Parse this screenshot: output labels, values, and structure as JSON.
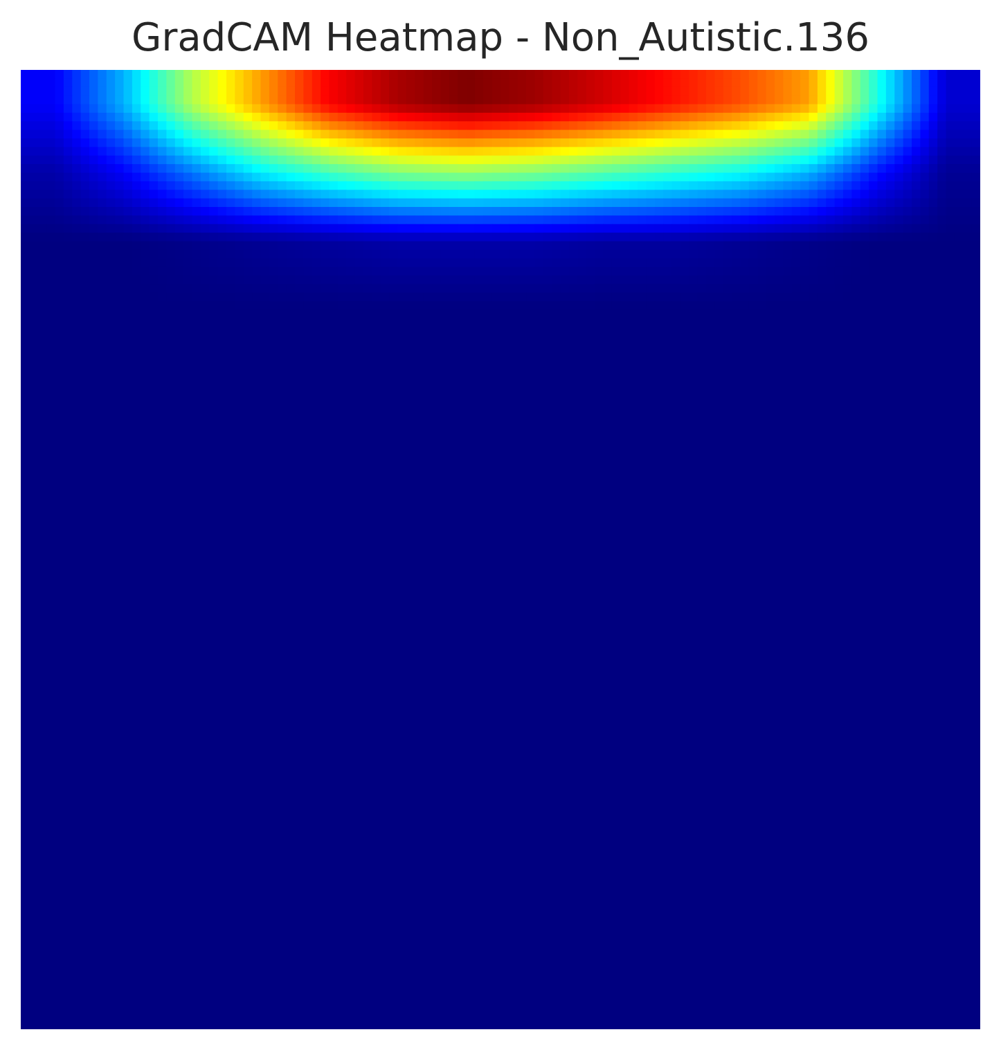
{
  "chart_data": {
    "type": "heatmap",
    "title": "GradCAM Heatmap - Non_Autistic.136",
    "xlabel": "",
    "ylabel": "",
    "colormap": "jet",
    "value_range": [
      0,
      1
    ],
    "axes_visible": false,
    "grid": false,
    "legend": "none",
    "grid_size": [
      14,
      14
    ],
    "values": [
      [
        0.12,
        0.3,
        0.55,
        0.72,
        0.88,
        0.96,
        1.0,
        0.97,
        0.92,
        0.86,
        0.8,
        0.72,
        0.4,
        0.08
      ],
      [
        0.04,
        0.12,
        0.24,
        0.36,
        0.44,
        0.5,
        0.52,
        0.5,
        0.46,
        0.42,
        0.38,
        0.3,
        0.14,
        0.02
      ],
      [
        0.0,
        0.0,
        0.01,
        0.02,
        0.03,
        0.04,
        0.04,
        0.04,
        0.03,
        0.03,
        0.02,
        0.01,
        0.0,
        0.0
      ],
      [
        0,
        0,
        0,
        0,
        0,
        0,
        0,
        0,
        0,
        0,
        0,
        0,
        0,
        0
      ],
      [
        0,
        0,
        0,
        0,
        0,
        0,
        0,
        0,
        0,
        0,
        0,
        0,
        0,
        0
      ],
      [
        0,
        0,
        0,
        0,
        0,
        0,
        0,
        0,
        0,
        0,
        0,
        0,
        0,
        0
      ],
      [
        0,
        0,
        0,
        0,
        0,
        0,
        0,
        0,
        0,
        0,
        0,
        0,
        0,
        0
      ],
      [
        0,
        0,
        0,
        0,
        0,
        0,
        0,
        0,
        0,
        0,
        0,
        0,
        0,
        0
      ],
      [
        0,
        0,
        0,
        0,
        0,
        0,
        0,
        0,
        0,
        0,
        0,
        0,
        0,
        0
      ],
      [
        0,
        0,
        0,
        0,
        0,
        0,
        0,
        0,
        0,
        0,
        0,
        0,
        0,
        0
      ],
      [
        0,
        0,
        0,
        0,
        0,
        0,
        0,
        0,
        0,
        0,
        0,
        0,
        0,
        0
      ],
      [
        0,
        0,
        0,
        0,
        0,
        0,
        0,
        0,
        0,
        0,
        0,
        0,
        0,
        0
      ],
      [
        0,
        0,
        0,
        0,
        0,
        0,
        0,
        0,
        0,
        0,
        0,
        0,
        0,
        0
      ],
      [
        0,
        0,
        0,
        0,
        0,
        0,
        0,
        0,
        0,
        0,
        0,
        0,
        0,
        0
      ]
    ]
  }
}
